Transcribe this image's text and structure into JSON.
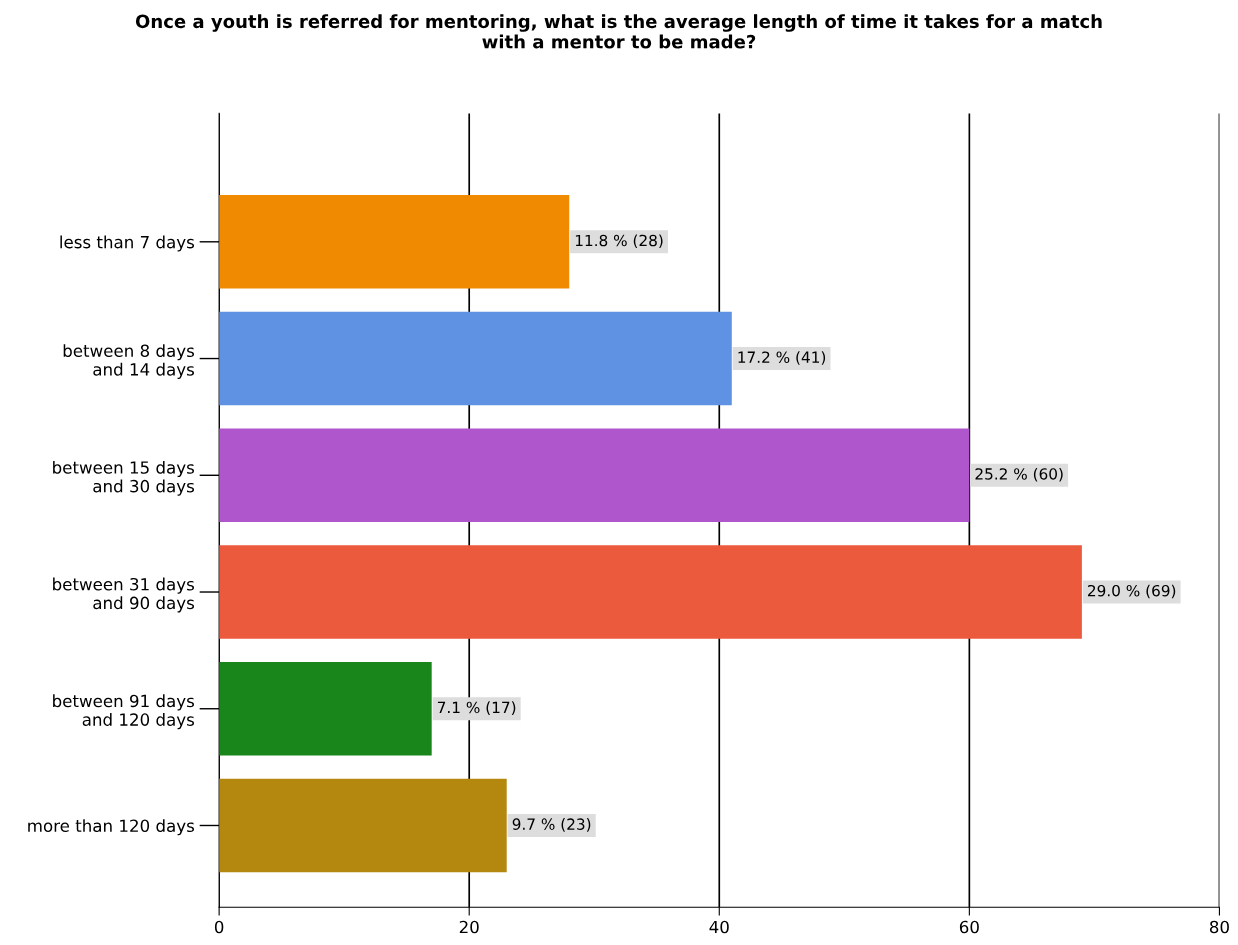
{
  "chart_data": {
    "type": "bar",
    "orientation": "horizontal",
    "title": "Once a youth is referred for mentoring, what is the average length of time it takes for a match\nwith a mentor to be made?",
    "categories": [
      "less than 7 days",
      "between 8 days\nand 14 days",
      "between 15 days\nand 30 days",
      "between 31 days\nand 90 days",
      "between 91 days\nand 120 days",
      "more than 120 days"
    ],
    "values": [
      28,
      41,
      60,
      69,
      17,
      23
    ],
    "colors": [
      "#f08a00",
      "#5f92e2",
      "#b056cc",
      "#ec5a3e",
      "#18861a",
      "#b4880e"
    ],
    "value_labels": [
      "11.8 % (28)",
      "17.2 % (41)",
      "25.2 % (60)",
      "29.0 % (69)",
      "7.1 % (17)",
      "9.7 % (23)"
    ],
    "xlim": [
      0,
      80
    ],
    "xticks": [
      0,
      20,
      40,
      60,
      80
    ],
    "grid": "x",
    "legend": false
  }
}
